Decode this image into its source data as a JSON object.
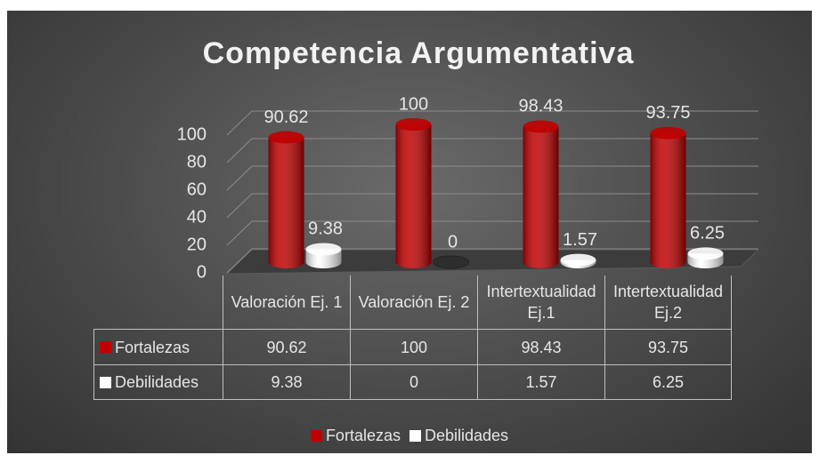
{
  "chart_data": {
    "type": "bar3d",
    "title": "Competencia Argumentativa",
    "categories": [
      "Valoración Ej. 1",
      "Valoración Ej. 2",
      "Intertextualidad Ej.1",
      "Intertextualidad Ej.2"
    ],
    "series": [
      {
        "name": "Fortalezas",
        "color": "#c00000",
        "values": [
          90.62,
          100,
          98.43,
          93.75
        ]
      },
      {
        "name": "Debilidades",
        "color": "#ffffff",
        "values": [
          9.38,
          0,
          1.57,
          6.25
        ]
      }
    ],
    "ylim": [
      0,
      100
    ],
    "yticks": [
      0,
      20,
      40,
      60,
      80,
      100
    ],
    "grid": true,
    "legend": "bottom",
    "data_table": true
  }
}
